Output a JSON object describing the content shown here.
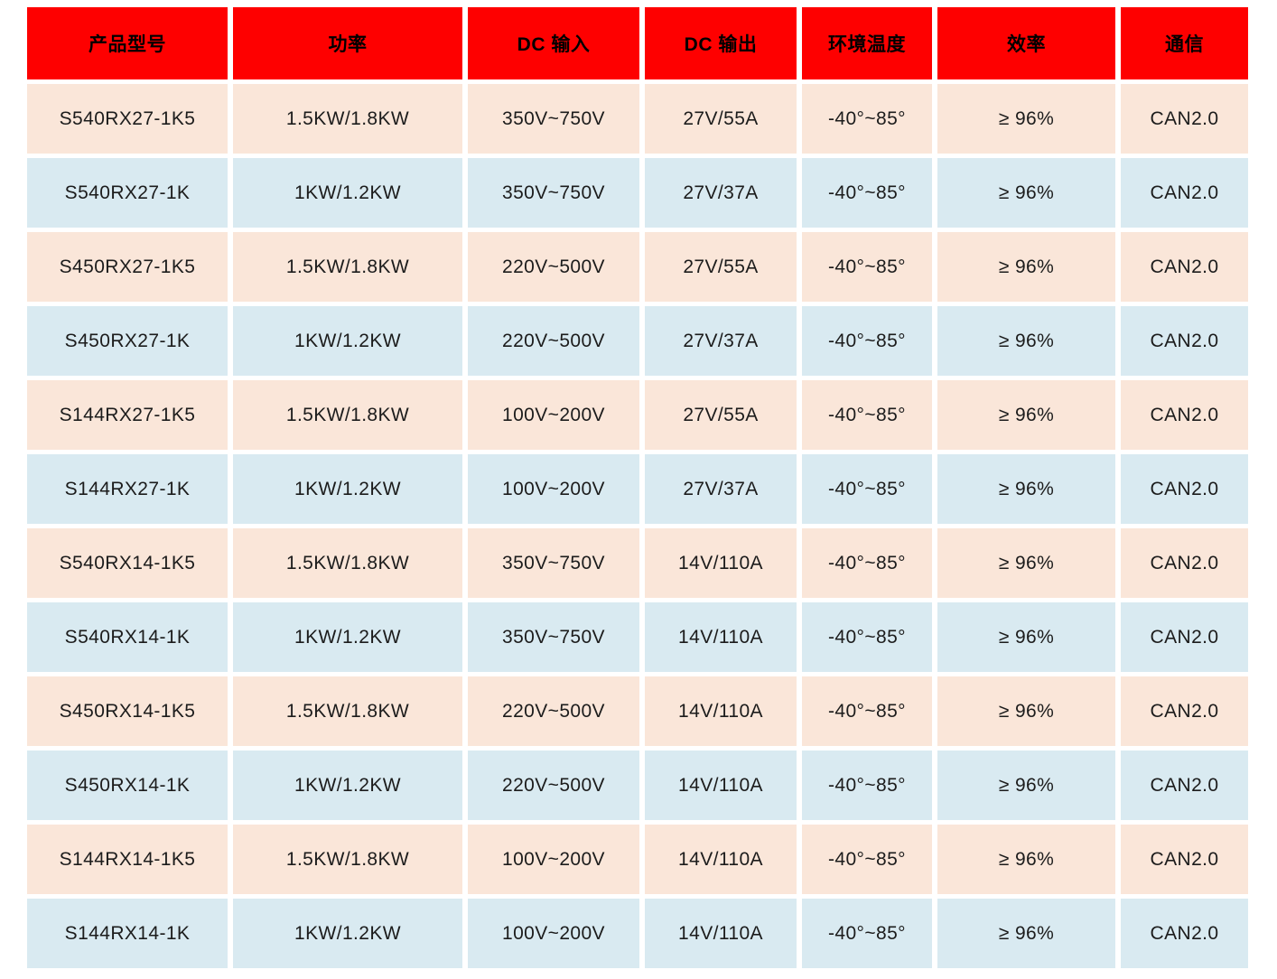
{
  "table": {
    "columns": [
      {
        "key": "model",
        "label": "产品型号"
      },
      {
        "key": "power",
        "label": "功率"
      },
      {
        "key": "dc_input",
        "label": "DC 输入"
      },
      {
        "key": "dc_output",
        "label": "DC 输出"
      },
      {
        "key": "ambient_temp",
        "label": "环境温度"
      },
      {
        "key": "efficiency",
        "label": "效率"
      },
      {
        "key": "communication",
        "label": "通信"
      }
    ],
    "rows": [
      [
        "S540RX27-1K5",
        "1.5KW/1.8KW",
        "350V~750V",
        "27V/55A",
        "-40°~85°",
        "≥ 96%",
        "CAN2.0"
      ],
      [
        "S540RX27-1K",
        "1KW/1.2KW",
        "350V~750V",
        "27V/37A",
        "-40°~85°",
        "≥ 96%",
        "CAN2.0"
      ],
      [
        "S450RX27-1K5",
        "1.5KW/1.8KW",
        "220V~500V",
        "27V/55A",
        "-40°~85°",
        "≥ 96%",
        "CAN2.0"
      ],
      [
        "S450RX27-1K",
        "1KW/1.2KW",
        "220V~500V",
        "27V/37A",
        "-40°~85°",
        "≥ 96%",
        "CAN2.0"
      ],
      [
        "S144RX27-1K5",
        "1.5KW/1.8KW",
        "100V~200V",
        "27V/55A",
        "-40°~85°",
        "≥ 96%",
        "CAN2.0"
      ],
      [
        "S144RX27-1K",
        "1KW/1.2KW",
        "100V~200V",
        "27V/37A",
        "-40°~85°",
        "≥ 96%",
        "CAN2.0"
      ],
      [
        "S540RX14-1K5",
        "1.5KW/1.8KW",
        "350V~750V",
        "14V/110A",
        "-40°~85°",
        "≥ 96%",
        "CAN2.0"
      ],
      [
        "S540RX14-1K",
        "1KW/1.2KW",
        "350V~750V",
        "14V/110A",
        "-40°~85°",
        "≥ 96%",
        "CAN2.0"
      ],
      [
        "S450RX14-1K5",
        "1.5KW/1.8KW",
        "220V~500V",
        "14V/110A",
        "-40°~85°",
        "≥ 96%",
        "CAN2.0"
      ],
      [
        "S450RX14-1K",
        "1KW/1.2KW",
        "220V~500V",
        "14V/110A",
        "-40°~85°",
        "≥ 96%",
        "CAN2.0"
      ],
      [
        "S144RX14-1K5",
        "1.5KW/1.8KW",
        "100V~200V",
        "14V/110A",
        "-40°~85°",
        "≥ 96%",
        "CAN2.0"
      ],
      [
        "S144RX14-1K",
        "1KW/1.2KW",
        "100V~200V",
        "14V/110A",
        "-40°~85°",
        "≥ 96%",
        "CAN2.0"
      ]
    ]
  },
  "colors": {
    "header_bg": "#fe0000",
    "row_odd_bg": "#fae6d9",
    "row_even_bg": "#d9eaf1",
    "page_bg": "#ffffff",
    "text": "#1c1c1c",
    "header_text": "#000000"
  }
}
